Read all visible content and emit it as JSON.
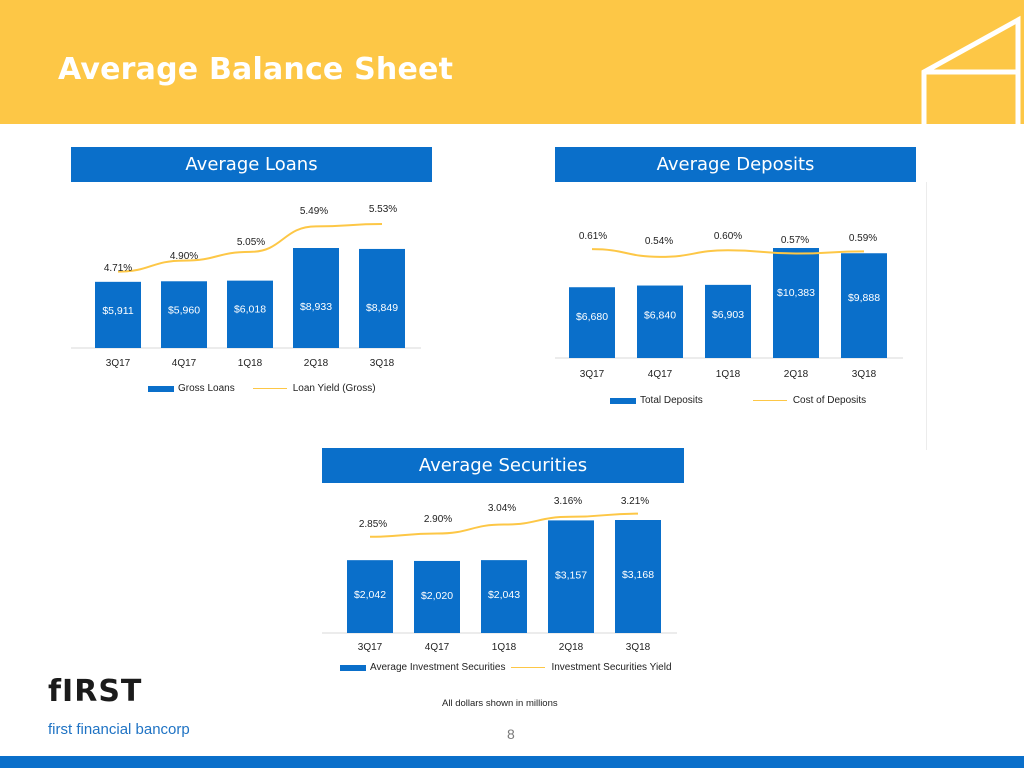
{
  "title": "Average Balance Sheet",
  "brand": {
    "logo_text": "fIRST",
    "tagline": "first financial bancorp",
    "yellow": "#fdc746",
    "blue": "#0a6fca"
  },
  "footnote": "All dollars shown in millions",
  "page_number": "8",
  "chart_data": [
    {
      "type": "bar",
      "title": "Average Loans",
      "categories": [
        "3Q17",
        "4Q17",
        "1Q18",
        "2Q18",
        "3Q18"
      ],
      "series": [
        {
          "name": "Gross Loans",
          "type": "bar",
          "values": [
            5911,
            5960,
            6018,
            8933,
            8849
          ],
          "labels": [
            "$5,911",
            "$5,960",
            "$6,018",
            "$8,933",
            "$8,849"
          ],
          "color": "#0a6fca"
        },
        {
          "name": "Loan Yield (Gross)",
          "type": "line",
          "values": [
            4.71,
            4.9,
            5.05,
            5.49,
            5.53
          ],
          "labels": [
            "4.71%",
            "4.90%",
            "5.05%",
            "5.49%",
            "5.53%"
          ],
          "color": "#fdc746"
        }
      ],
      "legend": "bottom"
    },
    {
      "type": "bar",
      "title": "Average Deposits",
      "categories": [
        "3Q17",
        "4Q17",
        "1Q18",
        "2Q18",
        "3Q18"
      ],
      "series": [
        {
          "name": "Total Deposits",
          "type": "bar",
          "values": [
            6680,
            6840,
            6903,
            10383,
            9888
          ],
          "labels": [
            "$6,680",
            "$6,840",
            "$6,903",
            "$10,383",
            "$9,888"
          ],
          "color": "#0a6fca"
        },
        {
          "name": "Cost of Deposits",
          "type": "line",
          "values": [
            0.61,
            0.54,
            0.6,
            0.57,
            0.59
          ],
          "labels": [
            "0.61%",
            "0.54%",
            "0.60%",
            "0.57%",
            "0.59%"
          ],
          "color": "#fdc746"
        }
      ],
      "legend": "bottom"
    },
    {
      "type": "bar",
      "title": "Average Securities",
      "categories": [
        "3Q17",
        "4Q17",
        "1Q18",
        "2Q18",
        "3Q18"
      ],
      "series": [
        {
          "name": "Average Investment Securities",
          "type": "bar",
          "values": [
            2042,
            2020,
            2043,
            3157,
            3168
          ],
          "labels": [
            "$2,042",
            "$2,020",
            "$2,043",
            "$3,157",
            "$3,168"
          ],
          "color": "#0a6fca"
        },
        {
          "name": "Investment Securities Yield",
          "type": "line",
          "values": [
            2.85,
            2.9,
            3.04,
            3.16,
            3.21
          ],
          "labels": [
            "2.85%",
            "2.90%",
            "3.04%",
            "3.16%",
            "3.21%"
          ],
          "color": "#fdc746"
        }
      ],
      "legend": "bottom"
    }
  ]
}
